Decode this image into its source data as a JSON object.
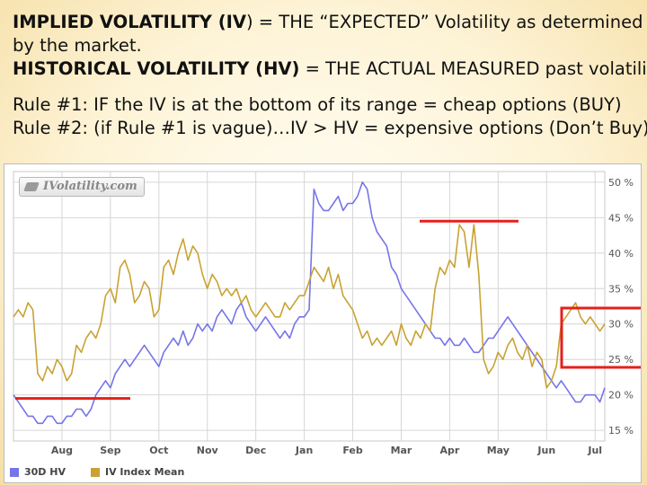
{
  "text": {
    "line1_bold": "IMPLIED VOLATILITY (IV",
    "line1_rest": ") = THE “EXPECTED” Volatility as determined",
    "line2": "by the market.",
    "line3_bold": "HISTORICAL VOLATILITY (HV)",
    "line3_rest": " = THE ACTUAL MEASURED past volatility.",
    "rule1": "Rule #1:  IF the IV is at the bottom of its range = cheap options (BUY)",
    "rule2": "Rule #2:  (if Rule #1 is vague)…IV > HV = expensive options (Don’t Buy)"
  },
  "logo_text": "IVolatility.com",
  "colors": {
    "hv": "#7575e8",
    "iv": "#c9a233",
    "annotation": "#e3211c",
    "grid": "#d6d6d6"
  },
  "chart_data": {
    "type": "line",
    "x_categories": [
      "Jul",
      "Aug",
      "Sep",
      "Oct",
      "Nov",
      "Dec",
      "Jan",
      "Feb",
      "Mar",
      "Apr",
      "May",
      "Jun",
      "Jul"
    ],
    "x_ticks": [
      "Aug",
      "Sep",
      "Oct",
      "Nov",
      "Dec",
      "Jan",
      "Feb",
      "Mar",
      "Apr",
      "May",
      "Jun",
      "Jul"
    ],
    "y_ticks": [
      "15 %",
      "20 %",
      "25 %",
      "30 %",
      "35 %",
      "40 %",
      "45 %",
      "50 %"
    ],
    "ylim": [
      13.5,
      51.5
    ],
    "grid": true,
    "legend_placement": "bottom-left",
    "series": [
      {
        "name": "30D HV",
        "x": [
          0,
          0.1,
          0.2,
          0.3,
          0.4,
          0.5,
          0.6,
          0.7,
          0.8,
          0.9,
          1.0,
          1.1,
          1.2,
          1.3,
          1.4,
          1.5,
          1.6,
          1.7,
          1.8,
          1.9,
          2.0,
          2.1,
          2.2,
          2.3,
          2.4,
          2.5,
          2.6,
          2.7,
          2.8,
          2.9,
          3.0,
          3.1,
          3.2,
          3.3,
          3.4,
          3.5,
          3.6,
          3.7,
          3.8,
          3.9,
          4.0,
          4.1,
          4.2,
          4.3,
          4.4,
          4.5,
          4.6,
          4.7,
          4.8,
          4.9,
          5.0,
          5.1,
          5.2,
          5.3,
          5.4,
          5.5,
          5.6,
          5.7,
          5.8,
          5.9,
          6.0,
          6.1,
          6.2,
          6.3,
          6.4,
          6.5,
          6.6,
          6.7,
          6.8,
          6.9,
          7.0,
          7.1,
          7.2,
          7.3,
          7.4,
          7.5,
          7.6,
          7.7,
          7.8,
          7.9,
          8.0,
          8.1,
          8.2,
          8.3,
          8.4,
          8.5,
          8.6,
          8.7,
          8.8,
          8.9,
          9.0,
          9.1,
          9.2,
          9.3,
          9.4,
          9.5,
          9.6,
          9.7,
          9.8,
          9.9,
          10.0,
          10.1,
          10.2,
          10.3,
          10.4,
          10.5,
          10.6,
          10.7,
          10.8,
          10.9,
          11.0,
          11.1,
          11.2,
          11.3,
          11.4,
          11.5,
          11.6,
          11.7,
          11.8,
          11.9,
          12.0,
          12.1,
          12.2
        ],
        "values": [
          20,
          19,
          18,
          17,
          17,
          16,
          16,
          17,
          17,
          16,
          16,
          17,
          17,
          18,
          18,
          17,
          18,
          20,
          21,
          22,
          21,
          23,
          24,
          25,
          24,
          25,
          26,
          27,
          26,
          25,
          24,
          26,
          27,
          28,
          27,
          29,
          27,
          28,
          30,
          29,
          30,
          29,
          31,
          32,
          31,
          30,
          32,
          33,
          31,
          30,
          29,
          30,
          31,
          30,
          29,
          28,
          29,
          28,
          30,
          31,
          31,
          32,
          49,
          47,
          46,
          46,
          47,
          48,
          46,
          47,
          47,
          48,
          50,
          49,
          45,
          43,
          42,
          41,
          38,
          37,
          35,
          34,
          33,
          32,
          31,
          30,
          29,
          28,
          28,
          27,
          28,
          27,
          27,
          28,
          27,
          26,
          26,
          27,
          28,
          28,
          29,
          30,
          31,
          30,
          29,
          28,
          27,
          26,
          25,
          24,
          23,
          22,
          21,
          22,
          21,
          20,
          19,
          19,
          20,
          20,
          20,
          19,
          21
        ]
      },
      {
        "name": "IV Index Mean",
        "x": [
          0,
          0.1,
          0.2,
          0.3,
          0.4,
          0.5,
          0.6,
          0.7,
          0.8,
          0.9,
          1.0,
          1.1,
          1.2,
          1.3,
          1.4,
          1.5,
          1.6,
          1.7,
          1.8,
          1.9,
          2.0,
          2.1,
          2.2,
          2.3,
          2.4,
          2.5,
          2.6,
          2.7,
          2.8,
          2.9,
          3.0,
          3.1,
          3.2,
          3.3,
          3.4,
          3.5,
          3.6,
          3.7,
          3.8,
          3.9,
          4.0,
          4.1,
          4.2,
          4.3,
          4.4,
          4.5,
          4.6,
          4.7,
          4.8,
          4.9,
          5.0,
          5.1,
          5.2,
          5.3,
          5.4,
          5.5,
          5.6,
          5.7,
          5.8,
          5.9,
          6.0,
          6.1,
          6.2,
          6.3,
          6.4,
          6.5,
          6.6,
          6.7,
          6.8,
          6.9,
          7.0,
          7.1,
          7.2,
          7.3,
          7.4,
          7.5,
          7.6,
          7.7,
          7.8,
          7.9,
          8.0,
          8.1,
          8.2,
          8.3,
          8.4,
          8.5,
          8.6,
          8.7,
          8.8,
          8.9,
          9.0,
          9.1,
          9.2,
          9.3,
          9.4,
          9.5,
          9.6,
          9.7,
          9.8,
          9.9,
          10.0,
          10.1,
          10.2,
          10.3,
          10.4,
          10.5,
          10.6,
          10.7,
          10.8,
          10.9,
          11.0,
          11.1,
          11.2,
          11.3,
          11.4,
          11.5,
          11.6,
          11.7,
          11.8,
          11.9,
          12.0,
          12.1,
          12.2
        ],
        "values": [
          31,
          32,
          31,
          33,
          32,
          23,
          22,
          24,
          23,
          25,
          24,
          22,
          23,
          27,
          26,
          28,
          29,
          28,
          30,
          34,
          35,
          33,
          38,
          39,
          37,
          33,
          34,
          36,
          35,
          31,
          32,
          38,
          39,
          37,
          40,
          42,
          39,
          41,
          40,
          37,
          35,
          37,
          36,
          34,
          35,
          34,
          35,
          33,
          34,
          32,
          31,
          32,
          33,
          32,
          31,
          31,
          33,
          32,
          33,
          34,
          34,
          36,
          38,
          37,
          36,
          38,
          35,
          37,
          34,
          33,
          32,
          30,
          28,
          29,
          27,
          28,
          27,
          28,
          29,
          27,
          30,
          28,
          27,
          29,
          28,
          30,
          29,
          35,
          38,
          37,
          39,
          38,
          44,
          43,
          38,
          44,
          37,
          25,
          23,
          24,
          26,
          25,
          27,
          28,
          26,
          25,
          27,
          24,
          26,
          25,
          21,
          22,
          24,
          30,
          31,
          32,
          33,
          31,
          30,
          31,
          30,
          29,
          30
        ]
      }
    ]
  }
}
